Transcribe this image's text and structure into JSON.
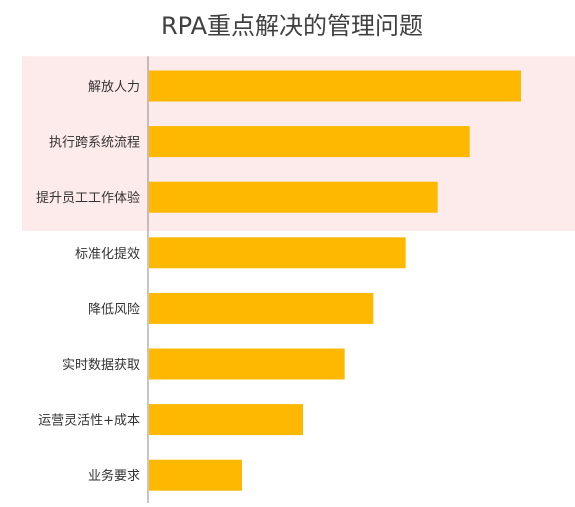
{
  "chart_data": {
    "type": "bar",
    "orientation": "horizontal",
    "title": "RPA重点解决的管理问题",
    "categories": [
      "解放人力",
      "执行跨系统流程",
      "提升员工工作体验",
      "标准化提效",
      "降低风险",
      "实时数据获取",
      "运营灵活性+成本",
      "业务要求"
    ],
    "values": [
      100,
      86.2,
      77.6,
      69.0,
      60.3,
      52.6,
      41.4,
      25.0
    ],
    "xlim": [
      0,
      100
    ],
    "highlighted_categories": 3,
    "grid": false,
    "legend": "none",
    "bar_color": "#FFB800",
    "highlight_color": "#FDEAEA"
  }
}
